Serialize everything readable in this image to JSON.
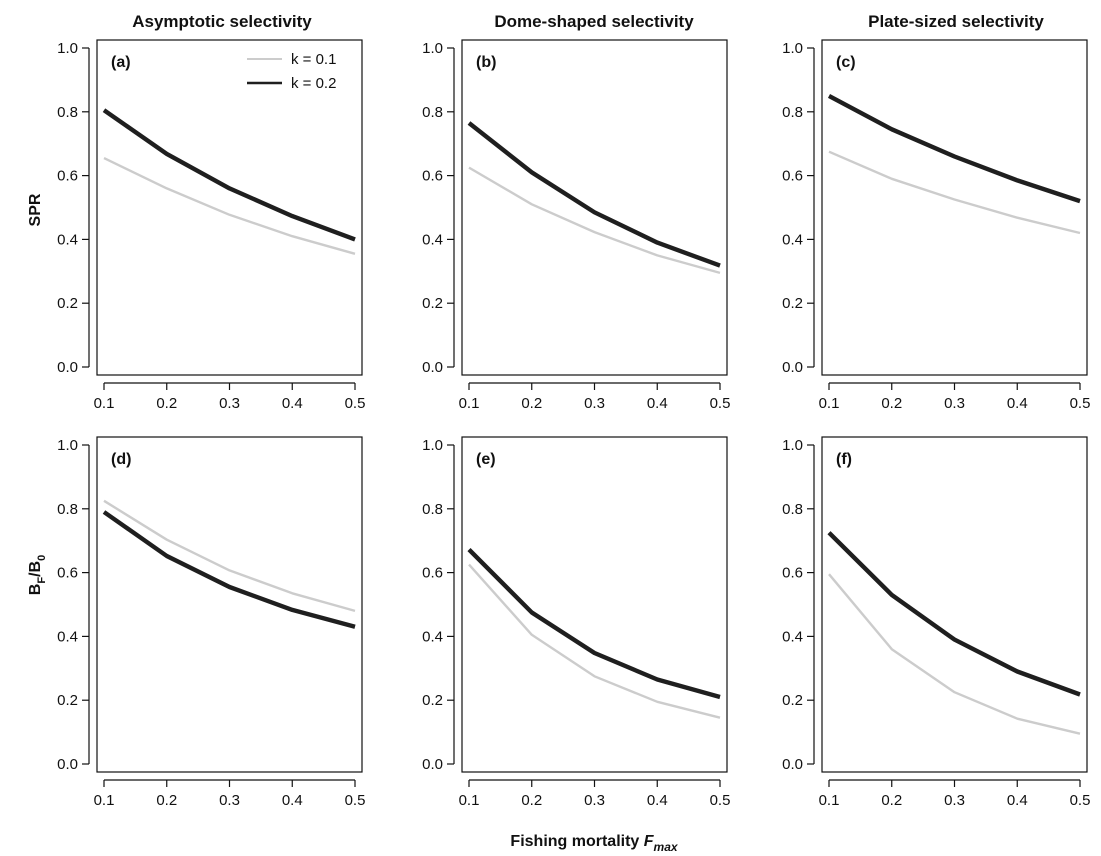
{
  "colors": {
    "k01": "#cccccc",
    "k02": "#1f1f1f"
  },
  "column_titles": [
    "Asymptotic selectivity",
    "Dome-shaped selectivity",
    "Plate-sized selectivity"
  ],
  "row_labels": {
    "top": "SPR",
    "bottom": {
      "main": "B",
      "sub1": "F",
      "mid": "/B",
      "sub2": "0"
    }
  },
  "x_axis_title": {
    "text": "Fishing mortality ",
    "italic": "F",
    "sub": "max"
  },
  "legend": {
    "placement": "top-right of panel (a)",
    "entries": [
      "k = 0.1",
      "k = 0.2"
    ]
  },
  "chart_data": [
    {
      "type": "line",
      "panel": "(a)",
      "row": "SPR",
      "column": "Asymptotic selectivity",
      "x": [
        0.1,
        0.2,
        0.3,
        0.4,
        0.5
      ],
      "xticks": [
        "0.1",
        "0.2",
        "0.3",
        "0.4",
        "0.5"
      ],
      "yticks": [
        "0.0",
        "0.2",
        "0.4",
        "0.6",
        "0.8",
        "1.0"
      ],
      "xlim": [
        0.1,
        0.5
      ],
      "ylim": [
        0,
        1
      ],
      "grid": false,
      "series": [
        {
          "name": "k = 0.1",
          "values": [
            0.655,
            0.56,
            0.477,
            0.41,
            0.355
          ]
        },
        {
          "name": "k = 0.2",
          "values": [
            0.805,
            0.668,
            0.56,
            0.473,
            0.4
          ]
        }
      ]
    },
    {
      "type": "line",
      "panel": "(b)",
      "row": "SPR",
      "column": "Dome-shaped selectivity",
      "x": [
        0.1,
        0.2,
        0.3,
        0.4,
        0.5
      ],
      "xticks": [
        "0.1",
        "0.2",
        "0.3",
        "0.4",
        "0.5"
      ],
      "yticks": [
        "0.0",
        "0.2",
        "0.4",
        "0.6",
        "0.8",
        "1.0"
      ],
      "xlim": [
        0.1,
        0.5
      ],
      "ylim": [
        0,
        1
      ],
      "grid": false,
      "series": [
        {
          "name": "k = 0.1",
          "values": [
            0.625,
            0.51,
            0.423,
            0.35,
            0.295
          ]
        },
        {
          "name": "k = 0.2",
          "values": [
            0.765,
            0.61,
            0.485,
            0.39,
            0.318
          ]
        }
      ]
    },
    {
      "type": "line",
      "panel": "(c)",
      "row": "SPR",
      "column": "Plate-sized selectivity",
      "x": [
        0.1,
        0.2,
        0.3,
        0.4,
        0.5
      ],
      "xticks": [
        "0.1",
        "0.2",
        "0.3",
        "0.4",
        "0.5"
      ],
      "yticks": [
        "0.0",
        "0.2",
        "0.4",
        "0.6",
        "0.8",
        "1.0"
      ],
      "xlim": [
        0.1,
        0.5
      ],
      "ylim": [
        0,
        1
      ],
      "grid": false,
      "series": [
        {
          "name": "k = 0.1",
          "values": [
            0.675,
            0.59,
            0.525,
            0.468,
            0.42
          ]
        },
        {
          "name": "k = 0.2",
          "values": [
            0.85,
            0.745,
            0.66,
            0.585,
            0.52
          ]
        }
      ]
    },
    {
      "type": "line",
      "panel": "(d)",
      "row": "BF/B0",
      "column": "Asymptotic selectivity",
      "x": [
        0.1,
        0.2,
        0.3,
        0.4,
        0.5
      ],
      "xticks": [
        "0.1",
        "0.2",
        "0.3",
        "0.4",
        "0.5"
      ],
      "yticks": [
        "0.0",
        "0.2",
        "0.4",
        "0.6",
        "0.8",
        "1.0"
      ],
      "xlim": [
        0.1,
        0.5
      ],
      "ylim": [
        0,
        1
      ],
      "grid": false,
      "series": [
        {
          "name": "k = 0.1",
          "values": [
            0.825,
            0.703,
            0.607,
            0.535,
            0.48
          ]
        },
        {
          "name": "k = 0.2",
          "values": [
            0.79,
            0.652,
            0.555,
            0.483,
            0.43
          ]
        }
      ]
    },
    {
      "type": "line",
      "panel": "(e)",
      "row": "BF/B0",
      "column": "Dome-shaped selectivity",
      "x": [
        0.1,
        0.2,
        0.3,
        0.4,
        0.5
      ],
      "xticks": [
        "0.1",
        "0.2",
        "0.3",
        "0.4",
        "0.5"
      ],
      "yticks": [
        "0.0",
        "0.2",
        "0.4",
        "0.6",
        "0.8",
        "1.0"
      ],
      "xlim": [
        0.1,
        0.5
      ],
      "ylim": [
        0,
        1
      ],
      "grid": false,
      "series": [
        {
          "name": "k = 0.1",
          "values": [
            0.625,
            0.405,
            0.275,
            0.195,
            0.145
          ]
        },
        {
          "name": "k = 0.2",
          "values": [
            0.672,
            0.475,
            0.348,
            0.265,
            0.21
          ]
        }
      ]
    },
    {
      "type": "line",
      "panel": "(f)",
      "row": "BF/B0",
      "column": "Plate-sized selectivity",
      "x": [
        0.1,
        0.2,
        0.3,
        0.4,
        0.5
      ],
      "xticks": [
        "0.1",
        "0.2",
        "0.3",
        "0.4",
        "0.5"
      ],
      "yticks": [
        "0.0",
        "0.2",
        "0.4",
        "0.6",
        "0.8",
        "1.0"
      ],
      "xlim": [
        0.1,
        0.5
      ],
      "ylim": [
        0,
        1
      ],
      "grid": false,
      "series": [
        {
          "name": "k = 0.1",
          "values": [
            0.595,
            0.36,
            0.225,
            0.142,
            0.095
          ]
        },
        {
          "name": "k = 0.2",
          "values": [
            0.725,
            0.53,
            0.39,
            0.29,
            0.218
          ]
        }
      ]
    }
  ]
}
